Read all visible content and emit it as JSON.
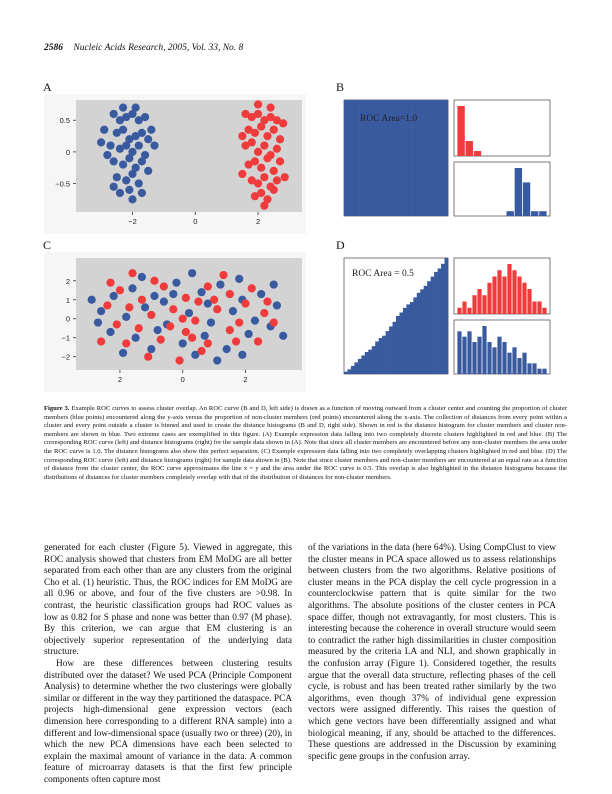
{
  "header": {
    "page_number": "2586",
    "journal": "Nucleic Acids Research, 2005, Vol. 33, No. 8"
  },
  "panels": {
    "A": {
      "label": "A"
    },
    "B": {
      "label": "B",
      "roc_label": "ROC Area=1.0"
    },
    "C": {
      "label": "C"
    },
    "D": {
      "label": "D",
      "roc_label": "ROC Area = 0.5"
    }
  },
  "colors": {
    "cluster_members": "#3a5aa0",
    "non_members": "#ef3b3b",
    "panel_bg": "#d3d3d3"
  },
  "chart_data": [
    {
      "type": "scatter",
      "panel": "A",
      "title": "",
      "x_ticks": [
        "−2",
        "0",
        "2"
      ],
      "y_ticks": [
        "0.5",
        "0",
        "−0.5"
      ],
      "xlim": [
        -3.8,
        3.4
      ],
      "ylim": [
        -0.95,
        0.82
      ],
      "series": [
        {
          "color": "blue",
          "points": [
            [
              -2.6,
              0.6
            ],
            [
              -2.4,
              0.5
            ],
            [
              -2.2,
              0.55
            ],
            [
              -2.0,
              0.6
            ],
            [
              -1.8,
              0.5
            ],
            [
              -1.6,
              0.55
            ],
            [
              -2.5,
              0.3
            ],
            [
              -2.3,
              0.35
            ],
            [
              -2.1,
              0.2
            ],
            [
              -1.9,
              0.25
            ],
            [
              -1.7,
              0.3
            ],
            [
              -1.5,
              0.2
            ],
            [
              -2.7,
              0.1
            ],
            [
              -2.4,
              0.05
            ],
            [
              -2.2,
              0.1
            ],
            [
              -2.0,
              0.0
            ],
            [
              -1.8,
              0.1
            ],
            [
              -1.6,
              -0.05
            ],
            [
              -2.6,
              -0.15
            ],
            [
              -2.3,
              -0.2
            ],
            [
              -2.1,
              -0.1
            ],
            [
              -1.9,
              -0.25
            ],
            [
              -1.7,
              -0.15
            ],
            [
              -2.5,
              -0.4
            ],
            [
              -2.2,
              -0.45
            ],
            [
              -2.0,
              -0.35
            ],
            [
              -1.8,
              -0.5
            ],
            [
              -2.4,
              -0.65
            ],
            [
              -2.1,
              -0.6
            ],
            [
              -2.9,
              0.35
            ],
            [
              -2.8,
              -0.05
            ],
            [
              -3.0,
              0.15
            ],
            [
              -1.4,
              0.35
            ],
            [
              -1.5,
              -0.3
            ],
            [
              -2.3,
              0.7
            ],
            [
              -1.9,
              0.7
            ],
            [
              -2.6,
              -0.55
            ],
            [
              -1.7,
              -0.65
            ],
            [
              -1.3,
              0.1
            ],
            [
              -2.0,
              -0.75
            ]
          ]
        },
        {
          "color": "red",
          "points": [
            [
              1.6,
              0.6
            ],
            [
              1.8,
              0.55
            ],
            [
              2.0,
              0.6
            ],
            [
              2.2,
              0.5
            ],
            [
              2.4,
              0.55
            ],
            [
              2.6,
              0.5
            ],
            [
              1.7,
              0.35
            ],
            [
              1.9,
              0.3
            ],
            [
              2.1,
              0.4
            ],
            [
              2.3,
              0.25
            ],
            [
              2.5,
              0.35
            ],
            [
              2.7,
              0.2
            ],
            [
              1.6,
              0.1
            ],
            [
              1.8,
              0.15
            ],
            [
              2.0,
              0.0
            ],
            [
              2.2,
              0.1
            ],
            [
              2.4,
              -0.05
            ],
            [
              2.6,
              0.05
            ],
            [
              1.7,
              -0.2
            ],
            [
              1.9,
              -0.15
            ],
            [
              2.1,
              -0.25
            ],
            [
              2.3,
              -0.1
            ],
            [
              2.5,
              -0.3
            ],
            [
              2.7,
              -0.15
            ],
            [
              1.8,
              -0.45
            ],
            [
              2.0,
              -0.5
            ],
            [
              2.2,
              -0.4
            ],
            [
              2.4,
              -0.55
            ],
            [
              2.6,
              -0.45
            ],
            [
              1.9,
              -0.7
            ],
            [
              2.1,
              -0.65
            ],
            [
              2.3,
              -0.75
            ],
            [
              2.5,
              -0.6
            ],
            [
              1.5,
              0.25
            ],
            [
              2.8,
              0.45
            ],
            [
              1.5,
              -0.35
            ],
            [
              2.85,
              -0.4
            ],
            [
              2.0,
              0.75
            ],
            [
              2.4,
              0.7
            ],
            [
              2.2,
              -0.85
            ]
          ]
        }
      ]
    },
    {
      "type": "area",
      "panel": "B",
      "title": "ROC Area=1.0",
      "values": [
        1,
        1,
        1,
        1,
        1,
        1,
        1,
        1,
        1,
        1,
        1,
        1,
        1,
        1,
        1,
        1,
        1,
        1,
        1,
        1
      ]
    },
    {
      "type": "bar",
      "panel": "B",
      "series": [
        {
          "color": "red",
          "values": [
            10,
            3,
            1,
            0,
            0,
            0,
            0,
            0,
            0,
            0,
            0
          ]
        },
        {
          "color": "blue",
          "values": [
            0,
            0,
            0,
            0,
            0,
            0,
            1,
            10,
            7,
            1,
            1
          ]
        }
      ]
    },
    {
      "type": "scatter",
      "panel": "C",
      "title": "",
      "x_ticks": [
        "2",
        "0",
        "2"
      ],
      "y_ticks": [
        "2",
        "1",
        "0",
        "−1",
        "−2"
      ],
      "xlim": [
        -3.4,
        3.8
      ],
      "ylim": [
        -2.7,
        3.2
      ],
      "series": [
        {
          "color": "blue",
          "points": [
            [
              -2.2,
              1.2
            ],
            [
              -1.6,
              1.6
            ],
            [
              -0.9,
              1.2
            ],
            [
              -0.2,
              1.9
            ],
            [
              0.6,
              1.4
            ],
            [
              1.2,
              1.8
            ],
            [
              1.9,
              1.0
            ],
            [
              2.5,
              1.3
            ],
            [
              -2.6,
              0.4
            ],
            [
              -1.8,
              0.1
            ],
            [
              -1.2,
              0.6
            ],
            [
              -0.5,
              -0.3
            ],
            [
              0.2,
              0.3
            ],
            [
              0.9,
              -0.2
            ],
            [
              1.6,
              0.4
            ],
            [
              2.3,
              -0.1
            ],
            [
              3.0,
              0.7
            ],
            [
              -2.3,
              -0.7
            ],
            [
              -1.5,
              -1.0
            ],
            [
              -0.8,
              -0.6
            ],
            [
              0.0,
              -1.3
            ],
            [
              0.7,
              -0.9
            ],
            [
              1.4,
              -1.6
            ],
            [
              2.1,
              -0.8
            ],
            [
              2.8,
              -0.4
            ],
            [
              -1.9,
              -1.8
            ],
            [
              -1.0,
              -1.6
            ],
            [
              0.4,
              -1.9
            ],
            [
              1.1,
              -2.2
            ],
            [
              -2.9,
              1.0
            ],
            [
              -0.3,
              1.3
            ],
            [
              1.8,
              2.1
            ],
            [
              -1.3,
              2.2
            ],
            [
              0.3,
              2.4
            ],
            [
              2.9,
              1.8
            ],
            [
              -2.7,
              -0.2
            ],
            [
              3.2,
              -0.9
            ],
            [
              1.9,
              -1.9
            ],
            [
              -0.6,
              0.9
            ],
            [
              0.8,
              0.8
            ]
          ]
        },
        {
          "color": "red",
          "points": [
            [
              -2.0,
              1.5
            ],
            [
              -1.3,
              1.0
            ],
            [
              -0.6,
              1.7
            ],
            [
              0.1,
              1.1
            ],
            [
              0.8,
              1.7
            ],
            [
              1.5,
              1.3
            ],
            [
              2.2,
              1.6
            ],
            [
              -2.4,
              0.7
            ],
            [
              -1.7,
              0.6
            ],
            [
              -1.0,
              0.2
            ],
            [
              -0.3,
              0.5
            ],
            [
              0.4,
              -0.1
            ],
            [
              1.1,
              0.5
            ],
            [
              1.8,
              -0.2
            ],
            [
              2.6,
              0.3
            ],
            [
              -2.1,
              -0.3
            ],
            [
              -1.4,
              -0.5
            ],
            [
              -0.7,
              -1.1
            ],
            [
              0.1,
              -0.7
            ],
            [
              0.8,
              -1.3
            ],
            [
              1.5,
              -0.6
            ],
            [
              2.4,
              -1.2
            ],
            [
              -1.1,
              -2.0
            ],
            [
              -0.1,
              -2.2
            ],
            [
              0.6,
              -1.7
            ],
            [
              1.7,
              -1.2
            ],
            [
              -0.9,
              2.0
            ],
            [
              0.5,
              0.9
            ],
            [
              2.7,
              0.9
            ],
            [
              -2.6,
              -1.2
            ],
            [
              -1.8,
              -1.3
            ],
            [
              2.0,
              0.8
            ],
            [
              0.0,
              0.0
            ],
            [
              -0.4,
              -0.4
            ],
            [
              1.3,
              2.3
            ],
            [
              -1.6,
              2.4
            ],
            [
              2.9,
              -0.2
            ],
            [
              0.3,
              -1.0
            ],
            [
              1.0,
              1.0
            ],
            [
              -2.3,
              1.9
            ]
          ]
        }
      ]
    },
    {
      "type": "area",
      "panel": "D",
      "title": "ROC Area = 0.5",
      "values": [
        0.02,
        0.04,
        0.07,
        0.1,
        0.13,
        0.16,
        0.19,
        0.21,
        0.24,
        0.28,
        0.31,
        0.33,
        0.37,
        0.41,
        0.45,
        0.5,
        0.53,
        0.57,
        0.6,
        0.62,
        0.66,
        0.7,
        0.73,
        0.76,
        0.8,
        0.84,
        0.88,
        0.91,
        0.95,
        1.0
      ]
    },
    {
      "type": "bar",
      "panel": "D",
      "series": [
        {
          "color": "red",
          "values": [
            1,
            2,
            1,
            3,
            4,
            3,
            5,
            6,
            7,
            6,
            8,
            7,
            6,
            5,
            4,
            2,
            2,
            1
          ]
        },
        {
          "color": "blue",
          "values": [
            8,
            7,
            8,
            6,
            7,
            9,
            6,
            5,
            7,
            6,
            4,
            5,
            3,
            4,
            2,
            2,
            1,
            1
          ]
        }
      ]
    }
  ],
  "caption": {
    "lead": "Figure 3.",
    "text": " Example ROC curves to assess cluster overlap. An ROC curve (B and D, left side) is drawn as a function of moving outward from a cluster center and counting the proportion of cluster members (blue points) encountered along the y-axis versus the proportion of non-cluster members (red points) encountered along the x-axis. The collection of distances from every point within a cluster and every point outside a cluster is binned and used to create the distance histograms (B and D, right side). Shown in red is the distance histogram for cluster members and cluster non-members are shown in blue. Two extreme cases are exemplified in this figure. (A) Example expression data falling into two completely discrete clusters highlighted in red and blue. (B) The corresponding ROC curve (left) and distance histograms (right) for the sample data shown in (A). Note that since all cluster members are encountered before any non-cluster members the area under the ROC curve is 1.0. The distance histograms also show this perfect separation. (C) Example expression data falling into two completely overlapping clusters highlighted in red and blue. (D) The corresponding ROC curve (left) and distance histograms (right) for sample data shown in (B). Note that since cluster members and non-cluster members are encountered at an equal rate as a function of distance from the cluster center, the ROC curve approximates the line x = y and the area under the ROC curve is 0.5. This overlap is also highlighted in the distance histograms because the distributions of distances for cluster members completely overlap with that of the distribution of distances for non-cluster members."
  },
  "body": {
    "left": [
      "generated for each cluster (Figure 5). Viewed in aggregate, this ROC analysis showed that clusters from EM MoDG are all better separated from each other than are any clusters from the original Cho et al. (1) heuristic. Thus, the ROC indices for EM MoDG are all 0.96 or above, and four of the five clusters are >0.98. In contrast, the heuristic classification groups had ROC values as low as 0.82 for S phase and none was better than 0.97 (M phase). By this criterion, we can argue that EM clustering is an objectively superior representation of the underlying data structure.",
      "How are these differences between clustering results distributed over the dataset? We used PCA (Principle Component Analysis) to determine whether the two clusterings were globally similar or different in the way they partitioned the dataspace. PCA projects high-dimensional gene expression vectors (each dimension here corresponding to a different RNA sample) into a different and low-dimensional space (usually two or three) (20), in which the new PCA dimensions have each been selected to explain the maximal amount of variance in the data. A common feature of microarray datasets is that the first few principle components often capture most"
    ],
    "right": [
      "of the variations in the data (here 64%). Using CompClust to view the cluster means in PCA space allowed us to assess relationships between clusters from the two algorithms. Relative positions of cluster means in the PCA display the cell cycle progression in a counterclockwise pattern that is quite similar for the two algorithms. The absolute positions of the cluster centers in PCA space differ, though not extravagantly, for most clusters. This is interesting because the coherence in overall structure would seem to contradict the rather high dissimilarities in cluster composition measured by the criteria LA and NLI, and shown graphically in the confusion array (Figure 1). Considered together, the results argue that the overall data structure, reflecting phases of the cell cycle, is robust and has been treated rather similarly by the two algorithms, even though 37% of individual gene expression vectors were assigned differently. This raises the question of which gene vectors have been differentially assigned and what biological meaning, if any, should be attached to the differences. These questions are addressed in the Discussion by examining specific gene groups in the confusion array."
    ]
  }
}
